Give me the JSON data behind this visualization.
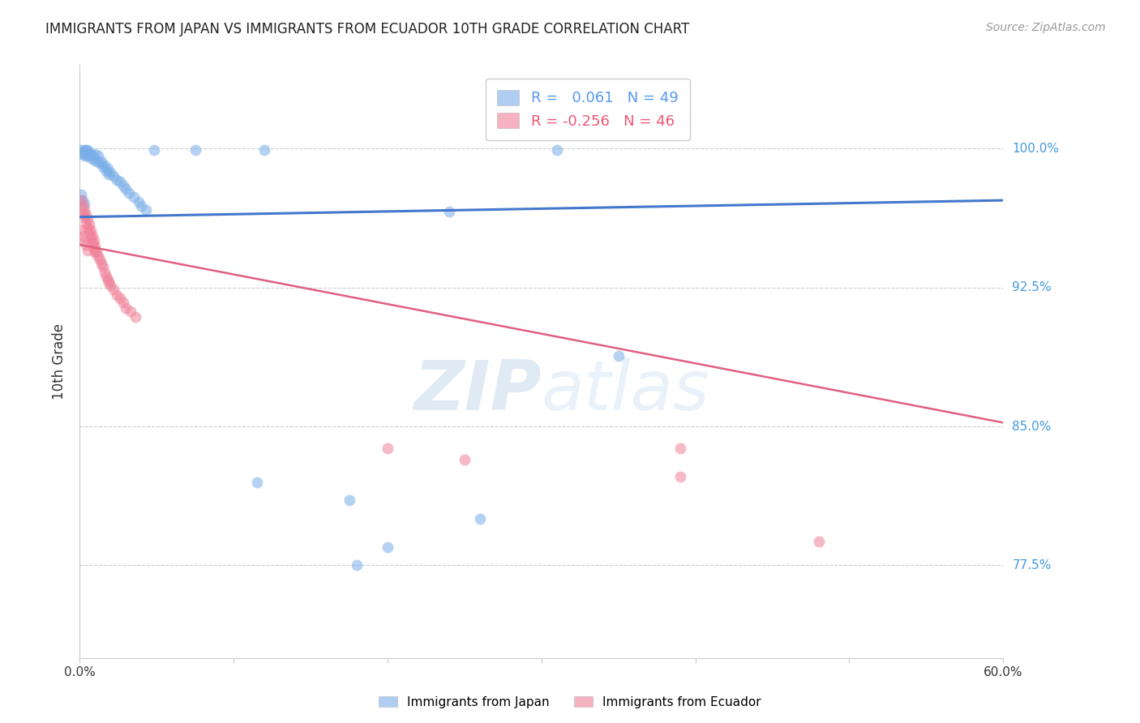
{
  "title": "IMMIGRANTS FROM JAPAN VS IMMIGRANTS FROM ECUADOR 10TH GRADE CORRELATION CHART",
  "source": "Source: ZipAtlas.com",
  "ylabel": "10th Grade",
  "ytick_labels": [
    "100.0%",
    "92.5%",
    "85.0%",
    "77.5%"
  ],
  "ytick_values": [
    1.0,
    0.925,
    0.85,
    0.775
  ],
  "xmin": 0.0,
  "xmax": 0.6,
  "ymin": 0.725,
  "ymax": 1.045,
  "watermark": "ZIPatlas",
  "legend": {
    "japan": {
      "R": "0.061",
      "N": "49",
      "color": "#5599ee"
    },
    "ecuador": {
      "R": "-0.256",
      "N": "46",
      "color": "#ee5577"
    }
  },
  "japan_scatter": [
    [
      0.001,
      0.999
    ],
    [
      0.002,
      0.998
    ],
    [
      0.002,
      0.997
    ],
    [
      0.003,
      0.999
    ],
    [
      0.003,
      0.996
    ],
    [
      0.004,
      0.999
    ],
    [
      0.004,
      0.997
    ],
    [
      0.005,
      0.999
    ],
    [
      0.005,
      0.996
    ],
    [
      0.006,
      0.998
    ],
    [
      0.007,
      0.997
    ],
    [
      0.007,
      0.995
    ],
    [
      0.008,
      0.996
    ],
    [
      0.009,
      0.994
    ],
    [
      0.01,
      0.997
    ],
    [
      0.011,
      0.993
    ],
    [
      0.012,
      0.996
    ],
    [
      0.013,
      0.992
    ],
    [
      0.014,
      0.993
    ],
    [
      0.015,
      0.99
    ],
    [
      0.016,
      0.991
    ],
    [
      0.017,
      0.988
    ],
    [
      0.018,
      0.989
    ],
    [
      0.019,
      0.986
    ],
    [
      0.02,
      0.987
    ],
    [
      0.022,
      0.985
    ],
    [
      0.024,
      0.983
    ],
    [
      0.026,
      0.982
    ],
    [
      0.028,
      0.98
    ],
    [
      0.03,
      0.978
    ],
    [
      0.032,
      0.976
    ],
    [
      0.035,
      0.974
    ],
    [
      0.038,
      0.971
    ],
    [
      0.04,
      0.969
    ],
    [
      0.043,
      0.967
    ],
    [
      0.001,
      0.975
    ],
    [
      0.002,
      0.972
    ],
    [
      0.003,
      0.97
    ],
    [
      0.048,
      0.999
    ],
    [
      0.075,
      0.999
    ],
    [
      0.12,
      0.999
    ],
    [
      0.24,
      0.966
    ],
    [
      0.31,
      0.999
    ],
    [
      0.175,
      0.81
    ],
    [
      0.26,
      0.8
    ],
    [
      0.115,
      0.82
    ],
    [
      0.35,
      0.888
    ],
    [
      0.2,
      0.785
    ],
    [
      0.18,
      0.775
    ]
  ],
  "ecuador_scatter": [
    [
      0.001,
      0.972
    ],
    [
      0.002,
      0.969
    ],
    [
      0.002,
      0.965
    ],
    [
      0.003,
      0.967
    ],
    [
      0.003,
      0.963
    ],
    [
      0.004,
      0.964
    ],
    [
      0.004,
      0.96
    ],
    [
      0.005,
      0.962
    ],
    [
      0.005,
      0.957
    ],
    [
      0.006,
      0.959
    ],
    [
      0.006,
      0.955
    ],
    [
      0.007,
      0.956
    ],
    [
      0.007,
      0.952
    ],
    [
      0.008,
      0.953
    ],
    [
      0.008,
      0.949
    ],
    [
      0.009,
      0.95
    ],
    [
      0.009,
      0.946
    ],
    [
      0.01,
      0.947
    ],
    [
      0.01,
      0.944
    ],
    [
      0.011,
      0.944
    ],
    [
      0.012,
      0.942
    ],
    [
      0.013,
      0.94
    ],
    [
      0.014,
      0.938
    ],
    [
      0.015,
      0.936
    ],
    [
      0.016,
      0.933
    ],
    [
      0.017,
      0.931
    ],
    [
      0.018,
      0.929
    ],
    [
      0.019,
      0.928
    ],
    [
      0.02,
      0.926
    ],
    [
      0.022,
      0.924
    ],
    [
      0.024,
      0.921
    ],
    [
      0.026,
      0.919
    ],
    [
      0.028,
      0.917
    ],
    [
      0.03,
      0.914
    ],
    [
      0.033,
      0.912
    ],
    [
      0.036,
      0.909
    ],
    [
      0.001,
      0.956
    ],
    [
      0.002,
      0.953
    ],
    [
      0.003,
      0.95
    ],
    [
      0.004,
      0.948
    ],
    [
      0.005,
      0.945
    ],
    [
      0.2,
      0.838
    ],
    [
      0.39,
      0.838
    ],
    [
      0.25,
      0.832
    ],
    [
      0.39,
      0.823
    ],
    [
      0.48,
      0.788
    ]
  ],
  "japan_trendline": [
    [
      0.0,
      0.963
    ],
    [
      0.6,
      0.972
    ]
  ],
  "ecuador_trendline": [
    [
      0.0,
      0.948
    ],
    [
      0.6,
      0.852
    ]
  ],
  "japan_color": "#7aaee8",
  "ecuador_color": "#f08098",
  "japan_line_color": "#4477cc",
  "ecuador_line_color": "#e06080",
  "background_color": "#ffffff",
  "grid_color": "#cccccc",
  "title_color": "#222222",
  "ytick_color": "#4499dd",
  "source_color": "#999999"
}
